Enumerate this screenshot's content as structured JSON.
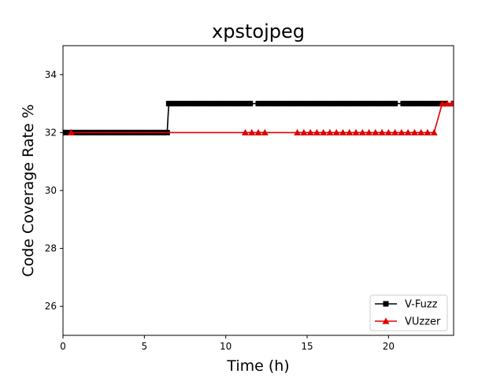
{
  "chart_data": {
    "type": "line",
    "title": "xpstojpeg",
    "xlabel": "Time (h)",
    "ylabel": "Code Coverage Rate %",
    "xlim": [
      0,
      24
    ],
    "ylim": [
      25,
      35
    ],
    "xticks": [
      0,
      5,
      10,
      15,
      20
    ],
    "yticks": [
      26,
      28,
      30,
      32,
      34
    ],
    "grid": false,
    "legend_position": "lower-right",
    "series": [
      {
        "name": "V-Fuzz",
        "color": "#000000",
        "marker": "square",
        "x": [
          0.0,
          0.2,
          0.4,
          0.6,
          0.8,
          1.0,
          1.2,
          1.4,
          1.6,
          1.8,
          2.0,
          2.2,
          2.4,
          2.6,
          2.8,
          3.0,
          3.2,
          3.4,
          3.6,
          3.8,
          4.0,
          4.2,
          4.4,
          4.6,
          4.8,
          5.0,
          5.2,
          5.4,
          5.6,
          5.8,
          6.0,
          6.2,
          6.4,
          6.5,
          6.7,
          6.9,
          7.1,
          7.3,
          7.5,
          7.7,
          7.9,
          8.1,
          8.3,
          8.5,
          8.7,
          8.9,
          9.1,
          9.3,
          9.5,
          9.7,
          9.9,
          10.1,
          10.3,
          10.5,
          10.7,
          10.9,
          11.1,
          11.3,
          11.5,
          12.0,
          12.2,
          12.4,
          12.6,
          12.8,
          13.0,
          13.2,
          13.4,
          13.6,
          13.8,
          14.0,
          14.2,
          14.4,
          14.6,
          14.8,
          15.0,
          15.2,
          15.4,
          15.6,
          15.8,
          16.0,
          16.2,
          16.4,
          16.6,
          16.8,
          17.0,
          17.2,
          17.4,
          17.6,
          17.8,
          18.0,
          18.2,
          18.4,
          18.6,
          18.8,
          19.0,
          19.2,
          19.4,
          19.6,
          19.8,
          20.0,
          20.2,
          20.4,
          20.9,
          21.1,
          21.3,
          21.5,
          21.7,
          21.9,
          22.1,
          22.3,
          22.5,
          22.7,
          22.9,
          23.1,
          23.3,
          23.5,
          24.0
        ],
        "y": [
          32,
          32,
          32,
          32,
          32,
          32,
          32,
          32,
          32,
          32,
          32,
          32,
          32,
          32,
          32,
          32,
          32,
          32,
          32,
          32,
          32,
          32,
          32,
          32,
          32,
          32,
          32,
          32,
          32,
          32,
          32,
          32,
          32,
          33,
          33,
          33,
          33,
          33,
          33,
          33,
          33,
          33,
          33,
          33,
          33,
          33,
          33,
          33,
          33,
          33,
          33,
          33,
          33,
          33,
          33,
          33,
          33,
          33,
          33,
          33,
          33,
          33,
          33,
          33,
          33,
          33,
          33,
          33,
          33,
          33,
          33,
          33,
          33,
          33,
          33,
          33,
          33,
          33,
          33,
          33,
          33,
          33,
          33,
          33,
          33,
          33,
          33,
          33,
          33,
          33,
          33,
          33,
          33,
          33,
          33,
          33,
          33,
          33,
          33,
          33,
          33,
          33,
          33,
          33,
          33,
          33,
          33,
          33,
          33,
          33,
          33,
          33,
          33,
          33,
          33,
          33,
          33
        ]
      },
      {
        "name": "VUzzer",
        "color": "#e00000",
        "marker": "triangle",
        "x": [
          0.5,
          11.2,
          11.6,
          12.0,
          12.4,
          14.4,
          14.8,
          15.2,
          15.6,
          16.0,
          16.4,
          16.8,
          17.2,
          17.6,
          18.0,
          18.4,
          18.8,
          19.2,
          19.6,
          20.0,
          20.4,
          20.8,
          21.2,
          21.6,
          22.0,
          22.4,
          22.8,
          23.3,
          23.6,
          23.9
        ],
        "y": [
          32,
          32,
          32,
          32,
          32,
          32,
          32,
          32,
          32,
          32,
          32,
          32,
          32,
          32,
          32,
          32,
          32,
          32,
          32,
          32,
          32,
          32,
          32,
          32,
          32,
          32,
          32,
          33,
          33,
          33
        ]
      }
    ]
  }
}
